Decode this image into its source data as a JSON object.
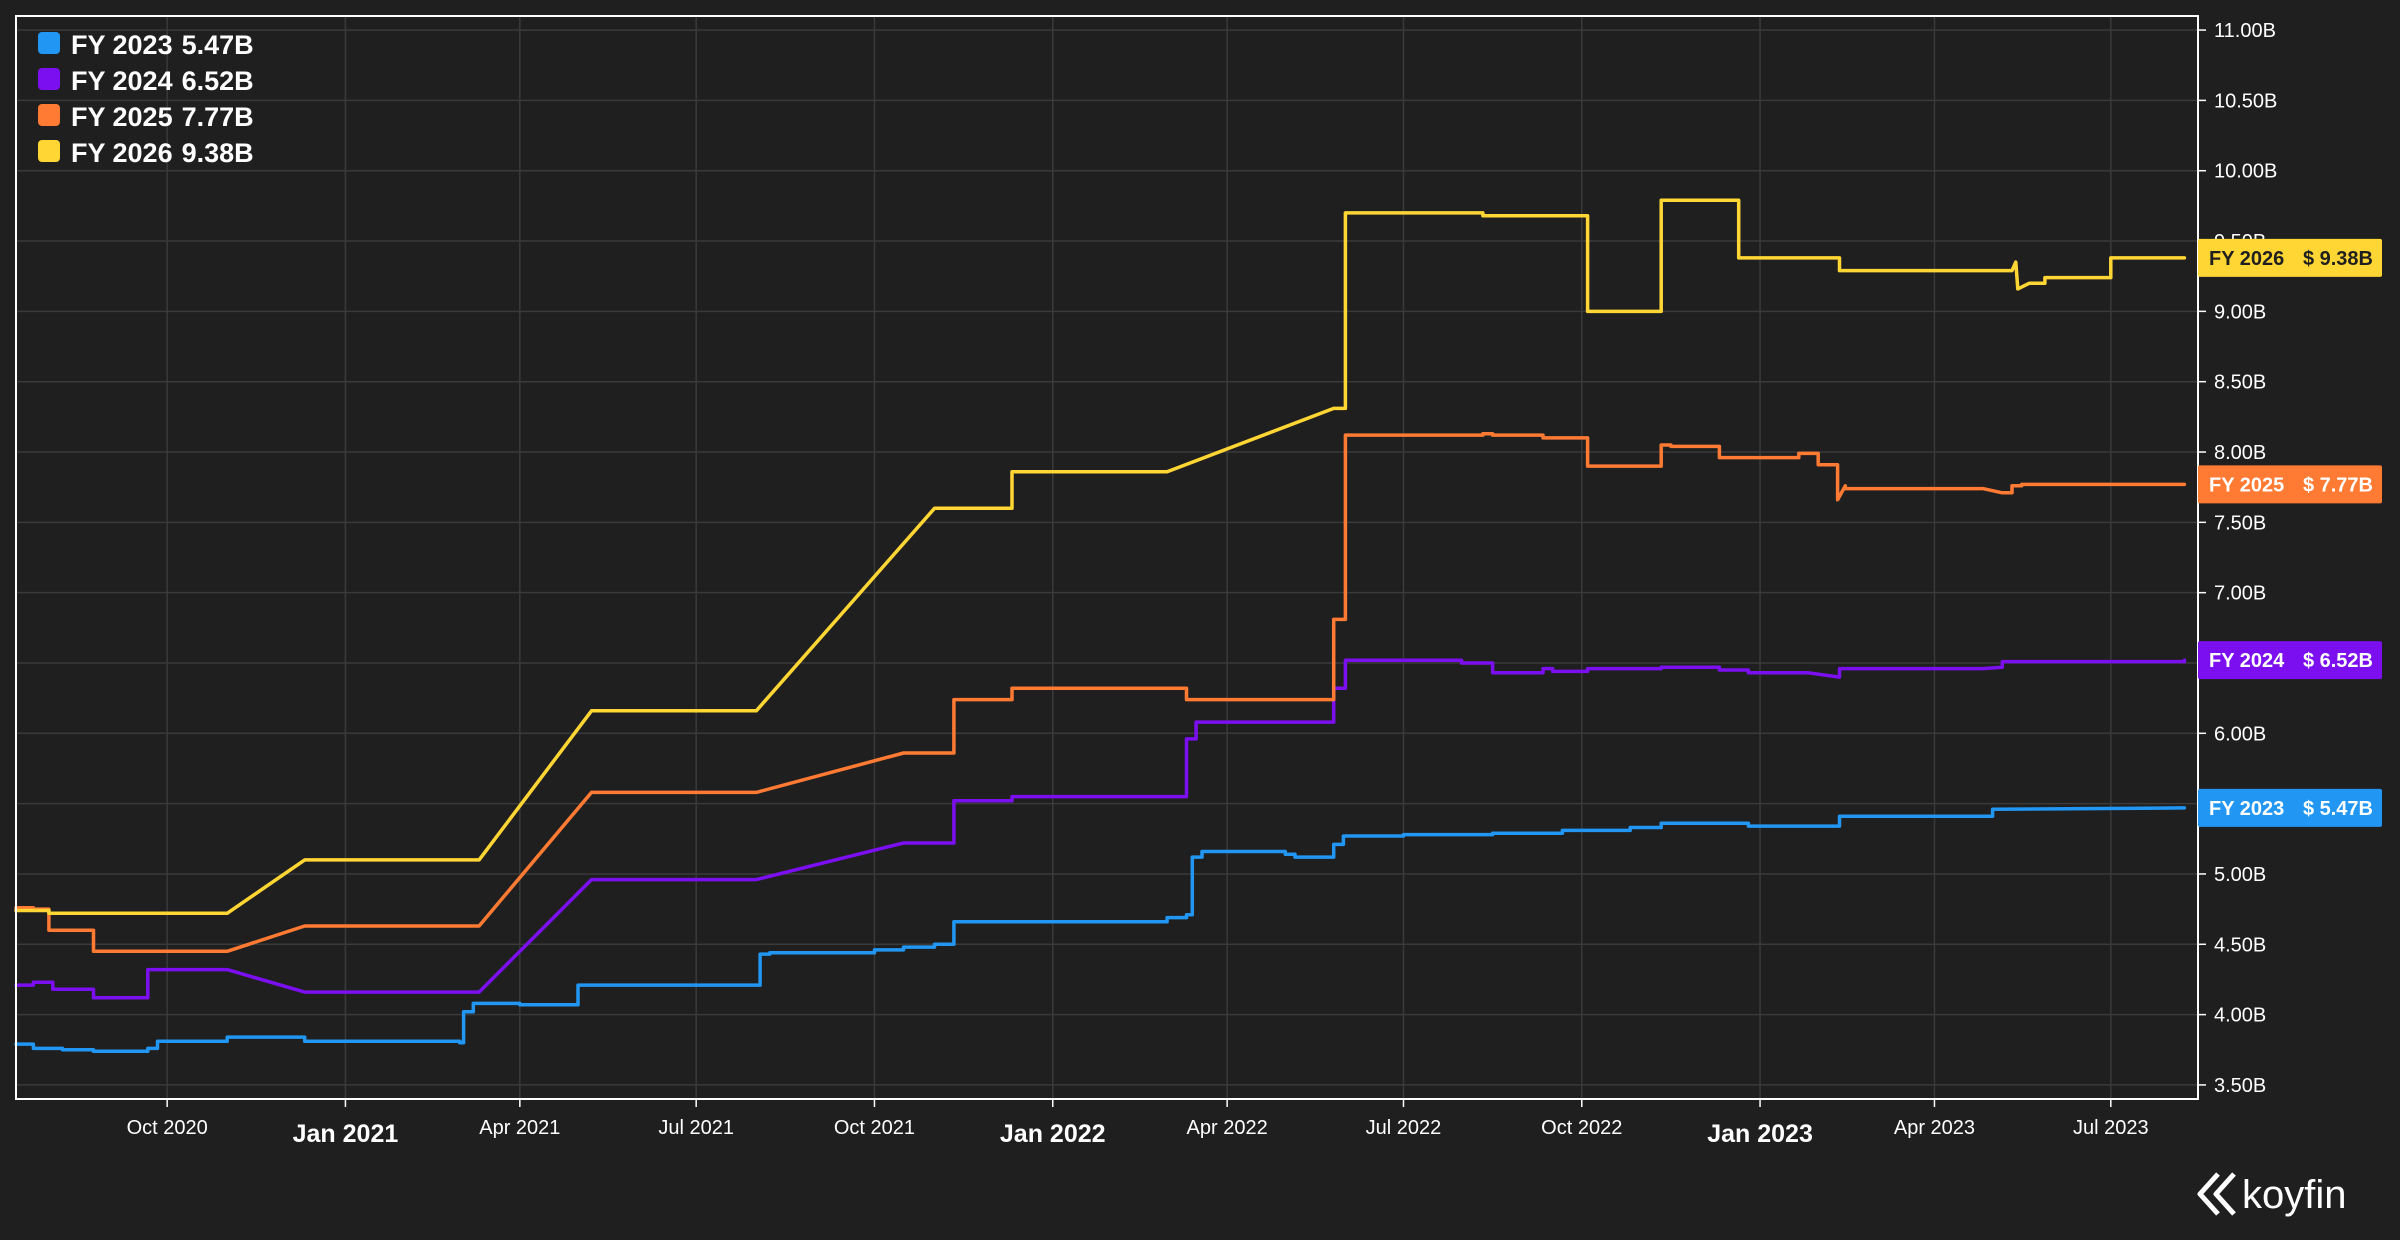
{
  "brand": {
    "name": "koyfin",
    "logo_icon": "koyfin-logo-icon"
  },
  "chart_data": {
    "type": "line",
    "x_type": "date",
    "xlim": [
      "2020-07-15",
      "2023-08-15"
    ],
    "ylim": [
      3.4,
      11.1
    ],
    "y_axis_side": "right",
    "grid": true,
    "legend_position": "top-left",
    "background": "#1f1f1f",
    "y_ticks": [
      {
        "value": 3.5,
        "label": "3.50B"
      },
      {
        "value": 4.0,
        "label": "4.00B"
      },
      {
        "value": 4.5,
        "label": "4.50B"
      },
      {
        "value": 5.0,
        "label": "5.00B"
      },
      {
        "value": 5.5,
        "label": "5.50B"
      },
      {
        "value": 6.0,
        "label": "6.00B"
      },
      {
        "value": 6.5,
        "label": "6.50B"
      },
      {
        "value": 7.0,
        "label": "7.00B"
      },
      {
        "value": 7.5,
        "label": "7.50B"
      },
      {
        "value": 8.0,
        "label": "8.00B"
      },
      {
        "value": 8.5,
        "label": "8.50B"
      },
      {
        "value": 9.0,
        "label": "9.00B"
      },
      {
        "value": 9.5,
        "label": "9.50B"
      },
      {
        "value": 10.0,
        "label": "10.00B"
      },
      {
        "value": 10.5,
        "label": "10.50B"
      },
      {
        "value": 11.0,
        "label": "11.00B"
      }
    ],
    "x_ticks": [
      {
        "date": "2020-10-01",
        "label": "Oct 2020",
        "major": false
      },
      {
        "date": "2021-01-01",
        "label": "Jan 2021",
        "major": true
      },
      {
        "date": "2021-04-01",
        "label": "Apr 2021",
        "major": false
      },
      {
        "date": "2021-07-01",
        "label": "Jul 2021",
        "major": false
      },
      {
        "date": "2021-10-01",
        "label": "Oct 2021",
        "major": false
      },
      {
        "date": "2022-01-01",
        "label": "Jan 2022",
        "major": true
      },
      {
        "date": "2022-04-01",
        "label": "Apr 2022",
        "major": false
      },
      {
        "date": "2022-07-01",
        "label": "Jul 2022",
        "major": false
      },
      {
        "date": "2022-10-01",
        "label": "Oct 2022",
        "major": false
      },
      {
        "date": "2023-01-01",
        "label": "Jan 2023",
        "major": true
      },
      {
        "date": "2023-04-01",
        "label": "Apr 2023",
        "major": false
      },
      {
        "date": "2023-07-01",
        "label": "Jul 2023",
        "major": false
      }
    ],
    "series": [
      {
        "name": "FY 2023",
        "legend_value": "5.47B",
        "last_label": "$ 5.47B",
        "last_value": 5.47,
        "color": "#2196f3",
        "tag_text_color": "#ffffff",
        "points": [
          [
            "2020-07-15",
            3.79
          ],
          [
            "2020-07-24",
            3.79
          ],
          [
            "2020-07-24",
            3.76
          ],
          [
            "2020-08-08",
            3.76
          ],
          [
            "2020-08-08",
            3.75
          ],
          [
            "2020-08-24",
            3.75
          ],
          [
            "2020-08-24",
            3.74
          ],
          [
            "2020-09-21",
            3.74
          ],
          [
            "2020-09-21",
            3.76
          ],
          [
            "2020-09-26",
            3.76
          ],
          [
            "2020-09-26",
            3.81
          ],
          [
            "2020-11-01",
            3.81
          ],
          [
            "2020-11-01",
            3.84
          ],
          [
            "2020-12-11",
            3.84
          ],
          [
            "2020-12-11",
            3.81
          ],
          [
            "2021-03-01",
            3.81
          ],
          [
            "2021-03-01",
            3.8
          ],
          [
            "2021-03-03",
            3.8
          ],
          [
            "2021-03-03",
            4.02
          ],
          [
            "2021-03-08",
            4.02
          ],
          [
            "2021-03-08",
            4.08
          ],
          [
            "2021-04-01",
            4.08
          ],
          [
            "2021-04-01",
            4.07
          ],
          [
            "2021-05-01",
            4.07
          ],
          [
            "2021-05-01",
            4.21
          ],
          [
            "2021-08-03",
            4.21
          ],
          [
            "2021-08-03",
            4.43
          ],
          [
            "2021-08-08",
            4.43
          ],
          [
            "2021-08-08",
            4.44
          ],
          [
            "2021-10-01",
            4.44
          ],
          [
            "2021-10-01",
            4.46
          ],
          [
            "2021-10-16",
            4.46
          ],
          [
            "2021-10-16",
            4.48
          ],
          [
            "2021-11-01",
            4.48
          ],
          [
            "2021-11-01",
            4.5
          ],
          [
            "2021-11-11",
            4.5
          ],
          [
            "2021-11-11",
            4.66
          ],
          [
            "2022-03-01",
            4.66
          ],
          [
            "2022-03-01",
            4.69
          ],
          [
            "2022-03-11",
            4.69
          ],
          [
            "2022-03-11",
            4.71
          ],
          [
            "2022-03-14",
            4.71
          ],
          [
            "2022-03-14",
            5.12
          ],
          [
            "2022-03-19",
            5.12
          ],
          [
            "2022-03-19",
            5.16
          ],
          [
            "2022-05-01",
            5.16
          ],
          [
            "2022-05-01",
            5.14
          ],
          [
            "2022-05-06",
            5.14
          ],
          [
            "2022-05-06",
            5.12
          ],
          [
            "2022-05-26",
            5.12
          ],
          [
            "2022-05-26",
            5.21
          ],
          [
            "2022-05-31",
            5.21
          ],
          [
            "2022-05-31",
            5.27
          ],
          [
            "2022-07-01",
            5.27
          ],
          [
            "2022-07-01",
            5.28
          ],
          [
            "2022-08-16",
            5.28
          ],
          [
            "2022-08-16",
            5.29
          ],
          [
            "2022-09-21",
            5.29
          ],
          [
            "2022-09-21",
            5.31
          ],
          [
            "2022-10-26",
            5.31
          ],
          [
            "2022-10-26",
            5.33
          ],
          [
            "2022-11-11",
            5.33
          ],
          [
            "2022-11-11",
            5.36
          ],
          [
            "2022-12-26",
            5.36
          ],
          [
            "2022-12-26",
            5.34
          ],
          [
            "2023-02-11",
            5.34
          ],
          [
            "2023-02-11",
            5.41
          ],
          [
            "2023-05-01",
            5.41
          ],
          [
            "2023-05-01",
            5.46
          ],
          [
            "2023-08-08",
            5.47
          ]
        ]
      },
      {
        "name": "FY 2024",
        "legend_value": "6.52B",
        "last_label": "$ 6.52B",
        "last_value": 6.52,
        "color": "#7c0ff0",
        "tag_text_color": "#ffffff",
        "points": [
          [
            "2020-07-15",
            4.21
          ],
          [
            "2020-07-24",
            4.21
          ],
          [
            "2020-07-24",
            4.23
          ],
          [
            "2020-08-03",
            4.23
          ],
          [
            "2020-08-03",
            4.18
          ],
          [
            "2020-08-24",
            4.18
          ],
          [
            "2020-08-24",
            4.12
          ],
          [
            "2020-09-21",
            4.12
          ],
          [
            "2020-09-21",
            4.32
          ],
          [
            "2020-11-01",
            4.32
          ],
          [
            "2020-12-11",
            4.16
          ],
          [
            "2021-03-11",
            4.16
          ],
          [
            "2021-05-08",
            4.96
          ],
          [
            "2021-08-01",
            4.96
          ],
          [
            "2021-10-16",
            5.22
          ],
          [
            "2021-11-11",
            5.22
          ],
          [
            "2021-11-11",
            5.52
          ],
          [
            "2021-12-11",
            5.52
          ],
          [
            "2021-12-11",
            5.55
          ],
          [
            "2022-03-11",
            5.55
          ],
          [
            "2022-03-11",
            5.96
          ],
          [
            "2022-03-16",
            5.96
          ],
          [
            "2022-03-16",
            6.08
          ],
          [
            "2022-05-26",
            6.08
          ],
          [
            "2022-05-26",
            6.32
          ],
          [
            "2022-06-01",
            6.32
          ],
          [
            "2022-06-01",
            6.52
          ],
          [
            "2022-07-31",
            6.52
          ],
          [
            "2022-07-31",
            6.5
          ],
          [
            "2022-08-16",
            6.5
          ],
          [
            "2022-08-16",
            6.43
          ],
          [
            "2022-09-11",
            6.43
          ],
          [
            "2022-09-11",
            6.46
          ],
          [
            "2022-09-16",
            6.46
          ],
          [
            "2022-09-16",
            6.44
          ],
          [
            "2022-10-04",
            6.44
          ],
          [
            "2022-10-04",
            6.46
          ],
          [
            "2022-11-11",
            6.46
          ],
          [
            "2022-11-11",
            6.47
          ],
          [
            "2022-12-11",
            6.47
          ],
          [
            "2022-12-11",
            6.45
          ],
          [
            "2022-12-26",
            6.45
          ],
          [
            "2022-12-26",
            6.43
          ],
          [
            "2023-01-26",
            6.43
          ],
          [
            "2023-02-11",
            6.4
          ],
          [
            "2023-02-11",
            6.46
          ],
          [
            "2023-04-26",
            6.46
          ],
          [
            "2023-05-06",
            6.47
          ],
          [
            "2023-05-06",
            6.51
          ],
          [
            "2023-08-08",
            6.51
          ],
          [
            "2023-08-08",
            6.52
          ]
        ]
      },
      {
        "name": "FY 2025",
        "legend_value": "7.77B",
        "last_label": "$ 7.77B",
        "last_value": 7.77,
        "color": "#ff7a33",
        "tag_text_color": "#ffffff",
        "points": [
          [
            "2020-07-15",
            4.76
          ],
          [
            "2020-07-24",
            4.76
          ],
          [
            "2020-07-24",
            4.75
          ],
          [
            "2020-08-01",
            4.75
          ],
          [
            "2020-08-01",
            4.6
          ],
          [
            "2020-08-24",
            4.6
          ],
          [
            "2020-08-24",
            4.45
          ],
          [
            "2020-11-01",
            4.45
          ],
          [
            "2020-12-11",
            4.63
          ],
          [
            "2021-03-11",
            4.63
          ],
          [
            "2021-05-08",
            5.58
          ],
          [
            "2021-08-01",
            5.58
          ],
          [
            "2021-10-16",
            5.86
          ],
          [
            "2021-11-11",
            5.86
          ],
          [
            "2021-11-11",
            6.24
          ],
          [
            "2021-12-11",
            6.24
          ],
          [
            "2021-12-11",
            6.32
          ],
          [
            "2022-03-11",
            6.32
          ],
          [
            "2022-03-11",
            6.24
          ],
          [
            "2022-05-26",
            6.24
          ],
          [
            "2022-05-26",
            6.81
          ],
          [
            "2022-06-01",
            6.81
          ],
          [
            "2022-06-01",
            8.12
          ],
          [
            "2022-08-11",
            8.12
          ],
          [
            "2022-08-11",
            8.13
          ],
          [
            "2022-08-16",
            8.13
          ],
          [
            "2022-08-16",
            8.12
          ],
          [
            "2022-09-11",
            8.12
          ],
          [
            "2022-09-11",
            8.1
          ],
          [
            "2022-10-04",
            8.1
          ],
          [
            "2022-10-04",
            7.9
          ],
          [
            "2022-11-11",
            7.9
          ],
          [
            "2022-11-11",
            8.05
          ],
          [
            "2022-11-16",
            8.05
          ],
          [
            "2022-11-16",
            8.04
          ],
          [
            "2022-12-11",
            8.04
          ],
          [
            "2022-12-11",
            7.96
          ],
          [
            "2023-01-21",
            7.96
          ],
          [
            "2023-01-21",
            7.99
          ],
          [
            "2023-01-31",
            7.99
          ],
          [
            "2023-01-31",
            7.91
          ],
          [
            "2023-02-10",
            7.91
          ],
          [
            "2023-02-10",
            7.66
          ],
          [
            "2023-02-14",
            7.76
          ],
          [
            "2023-02-14",
            7.74
          ],
          [
            "2023-04-26",
            7.74
          ],
          [
            "2023-05-06",
            7.71
          ],
          [
            "2023-05-11",
            7.71
          ],
          [
            "2023-05-11",
            7.76
          ],
          [
            "2023-05-16",
            7.76
          ],
          [
            "2023-05-16",
            7.77
          ],
          [
            "2023-08-08",
            7.77
          ]
        ]
      },
      {
        "name": "FY 2026",
        "legend_value": "9.38B",
        "last_label": "$ 9.38B",
        "last_value": 9.38,
        "color": "#ffd633",
        "tag_text_color": "#1f1f1f",
        "points": [
          [
            "2020-07-15",
            4.74
          ],
          [
            "2020-08-01",
            4.74
          ],
          [
            "2020-08-01",
            4.72
          ],
          [
            "2020-11-01",
            4.72
          ],
          [
            "2020-12-11",
            5.1
          ],
          [
            "2021-03-11",
            5.1
          ],
          [
            "2021-05-08",
            6.16
          ],
          [
            "2021-08-01",
            6.16
          ],
          [
            "2021-11-01",
            7.6
          ],
          [
            "2021-12-11",
            7.6
          ],
          [
            "2021-12-11",
            7.86
          ],
          [
            "2022-03-01",
            7.86
          ],
          [
            "2022-05-26",
            8.31
          ],
          [
            "2022-06-01",
            8.31
          ],
          [
            "2022-06-01",
            9.7
          ],
          [
            "2022-08-11",
            9.7
          ],
          [
            "2022-08-11",
            9.68
          ],
          [
            "2022-10-04",
            9.68
          ],
          [
            "2022-10-04",
            9.0
          ],
          [
            "2022-11-11",
            9.0
          ],
          [
            "2022-11-11",
            9.79
          ],
          [
            "2022-12-21",
            9.79
          ],
          [
            "2022-12-21",
            9.38
          ],
          [
            "2023-02-11",
            9.38
          ],
          [
            "2023-02-11",
            9.29
          ],
          [
            "2023-05-11",
            9.29
          ],
          [
            "2023-05-13",
            9.35
          ],
          [
            "2023-05-14",
            9.16
          ],
          [
            "2023-05-20",
            9.2
          ],
          [
            "2023-05-28",
            9.2
          ],
          [
            "2023-05-28",
            9.24
          ],
          [
            "2023-07-01",
            9.24
          ],
          [
            "2023-07-01",
            9.38
          ],
          [
            "2023-08-08",
            9.38
          ]
        ]
      }
    ]
  }
}
